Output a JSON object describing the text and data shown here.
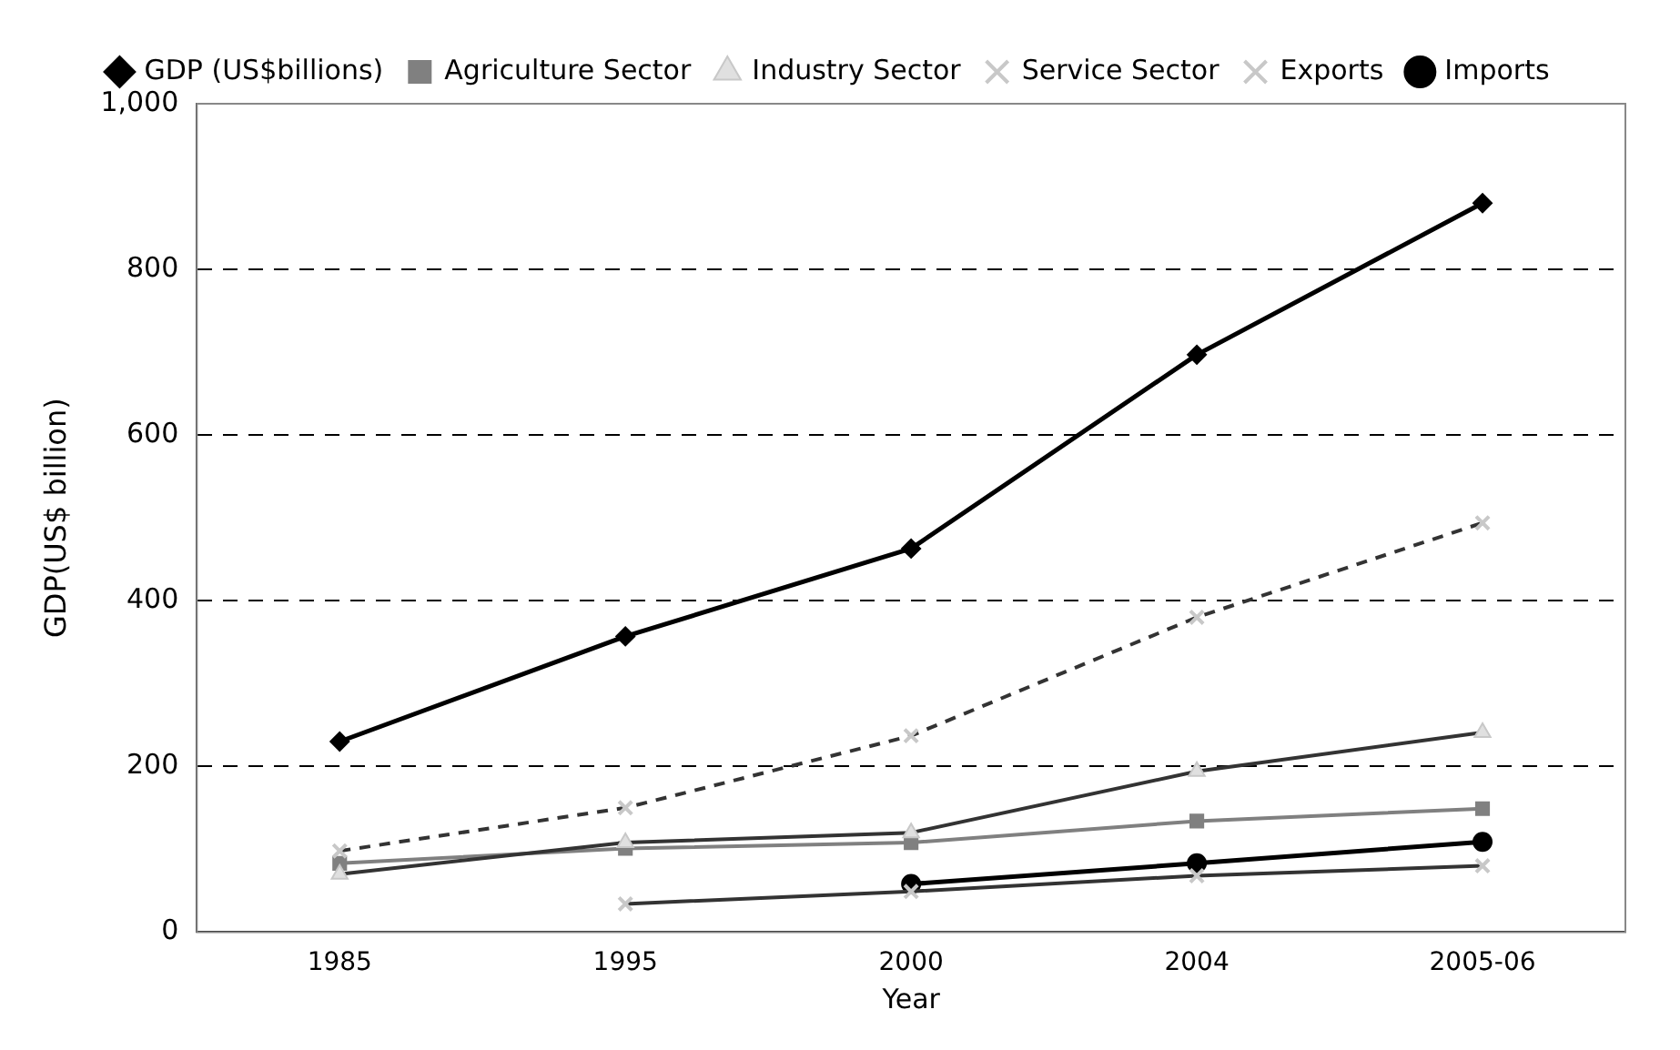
{
  "chart_data": {
    "type": "line",
    "xlabel": "Year",
    "ylabel": "GDP(US$ billion)",
    "categories": [
      "1985",
      "1995",
      "2000",
      "2004",
      "2005-06"
    ],
    "series": [
      {
        "name": "GDP (US$billions)",
        "color": "#000000",
        "marker": "diamond",
        "values": [
          230,
          357,
          463,
          697,
          880
        ]
      },
      {
        "name": "Agriculture Sector",
        "color": "#808080",
        "marker": "square",
        "values": [
          83,
          101,
          108,
          134,
          149
        ]
      },
      {
        "name": "Industry Sector",
        "color": "#333333",
        "marker": "triangle",
        "values": [
          70,
          108,
          120,
          194,
          241
        ]
      },
      {
        "name": "Service Sector",
        "color": "#333333",
        "marker": "cross",
        "line_style": "dashed",
        "values": [
          98,
          150,
          237,
          380,
          494
        ]
      },
      {
        "name": "Exports",
        "color": "#333333",
        "marker": "cross",
        "values": [
          null,
          34,
          49,
          68,
          80
        ]
      },
      {
        "name": "Imports",
        "color": "#000000",
        "marker": "circle",
        "values": [
          null,
          null,
          58,
          83,
          109
        ]
      }
    ],
    "ylim": [
      0,
      1000
    ],
    "yticks": [
      0,
      200,
      400,
      600,
      800,
      {
        "value": 1000,
        "label": "1,000"
      }
    ],
    "grid": "y",
    "legend": "top"
  }
}
